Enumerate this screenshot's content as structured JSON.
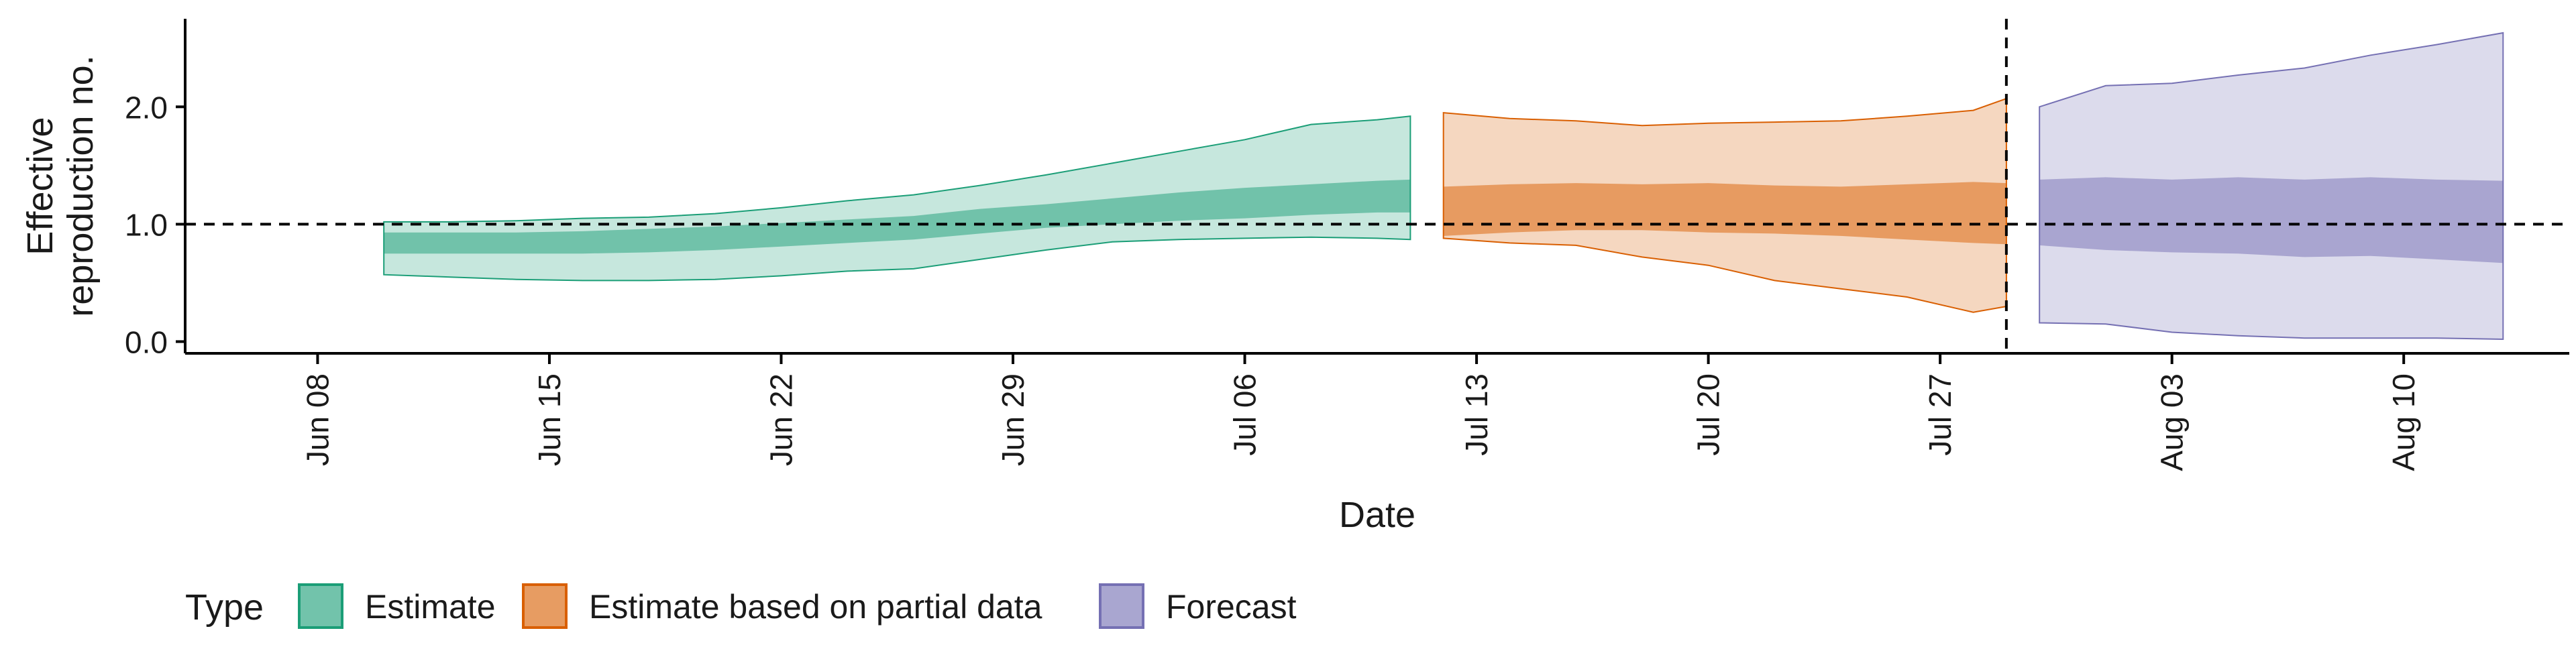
{
  "chart_data": {
    "type": "area",
    "xlabel": "Date",
    "ylabel_lines": [
      "Effective",
      "reproduction no."
    ],
    "ylim": [
      -0.1,
      2.75
    ],
    "yticks": [
      0.0,
      1.0,
      2.0
    ],
    "ytick_labels": [
      "0.0",
      "1.0",
      "2.0"
    ],
    "x_range": [
      "2024-06-04",
      "2024-08-15"
    ],
    "x_tick_dates": [
      "2024-06-08",
      "2024-06-15",
      "2024-06-22",
      "2024-06-29",
      "2024-07-06",
      "2024-07-13",
      "2024-07-20",
      "2024-07-27",
      "2024-08-03",
      "2024-08-10"
    ],
    "x_tick_labels": [
      "Jun 08",
      "Jun 15",
      "Jun 22",
      "Jun 29",
      "Jul 06",
      "Jul 13",
      "Jul 20",
      "Jul 27",
      "Aug 03",
      "Aug 10"
    ],
    "reference_hline": 1.0,
    "reference_vline": "2024-07-29",
    "grid": false,
    "legend": {
      "title": "Type",
      "placement": "bottom",
      "entries": [
        "Estimate",
        "Estimate based on partial data",
        "Forecast"
      ]
    },
    "colors": {
      "Estimate": "#1b9e77",
      "Estimate based on partial data": "#d95f02",
      "Forecast": "#7570b3"
    },
    "series": [
      {
        "name": "Estimate",
        "x": [
          "2024-06-10",
          "2024-06-12",
          "2024-06-14",
          "2024-06-16",
          "2024-06-18",
          "2024-06-20",
          "2024-06-22",
          "2024-06-24",
          "2024-06-26",
          "2024-06-28",
          "2024-06-30",
          "2024-07-02",
          "2024-07-04",
          "2024-07-06",
          "2024-07-08",
          "2024-07-10",
          "2024-07-11"
        ],
        "outer_lower": [
          0.57,
          0.55,
          0.53,
          0.52,
          0.52,
          0.53,
          0.56,
          0.6,
          0.62,
          0.7,
          0.78,
          0.85,
          0.87,
          0.88,
          0.89,
          0.88,
          0.87
        ],
        "inner_lower": [
          0.75,
          0.75,
          0.75,
          0.75,
          0.76,
          0.78,
          0.81,
          0.84,
          0.87,
          0.92,
          0.97,
          1.0,
          1.03,
          1.05,
          1.08,
          1.1,
          1.1
        ],
        "inner_upper": [
          0.93,
          0.93,
          0.93,
          0.94,
          0.96,
          0.98,
          1.01,
          1.04,
          1.07,
          1.13,
          1.17,
          1.22,
          1.27,
          1.31,
          1.34,
          1.37,
          1.38
        ],
        "outer_upper": [
          1.02,
          1.02,
          1.03,
          1.05,
          1.06,
          1.09,
          1.14,
          1.2,
          1.25,
          1.33,
          1.42,
          1.52,
          1.62,
          1.72,
          1.85,
          1.89,
          1.92
        ]
      },
      {
        "name": "Estimate based on partial data",
        "x": [
          "2024-07-12",
          "2024-07-14",
          "2024-07-16",
          "2024-07-18",
          "2024-07-20",
          "2024-07-22",
          "2024-07-24",
          "2024-07-26",
          "2024-07-28",
          "2024-07-29"
        ],
        "outer_lower": [
          0.88,
          0.84,
          0.82,
          0.72,
          0.65,
          0.52,
          0.45,
          0.38,
          0.25,
          0.3
        ],
        "inner_lower": [
          0.9,
          0.93,
          0.95,
          0.95,
          0.93,
          0.92,
          0.9,
          0.87,
          0.84,
          0.83
        ],
        "inner_upper": [
          1.32,
          1.34,
          1.35,
          1.34,
          1.35,
          1.33,
          1.32,
          1.34,
          1.36,
          1.35
        ],
        "outer_upper": [
          1.95,
          1.9,
          1.88,
          1.84,
          1.86,
          1.87,
          1.88,
          1.92,
          1.97,
          2.07
        ]
      },
      {
        "name": "Forecast",
        "x": [
          "2024-07-30",
          "2024-08-01",
          "2024-08-03",
          "2024-08-05",
          "2024-08-07",
          "2024-08-09",
          "2024-08-11",
          "2024-08-13"
        ],
        "outer_lower": [
          0.16,
          0.15,
          0.08,
          0.05,
          0.03,
          0.03,
          0.03,
          0.02
        ],
        "inner_lower": [
          0.82,
          0.78,
          0.76,
          0.75,
          0.72,
          0.73,
          0.7,
          0.67
        ],
        "inner_upper": [
          1.38,
          1.4,
          1.38,
          1.4,
          1.38,
          1.4,
          1.38,
          1.37
        ],
        "outer_upper": [
          2.0,
          2.18,
          2.2,
          2.27,
          2.33,
          2.44,
          2.53,
          2.63
        ]
      }
    ]
  }
}
